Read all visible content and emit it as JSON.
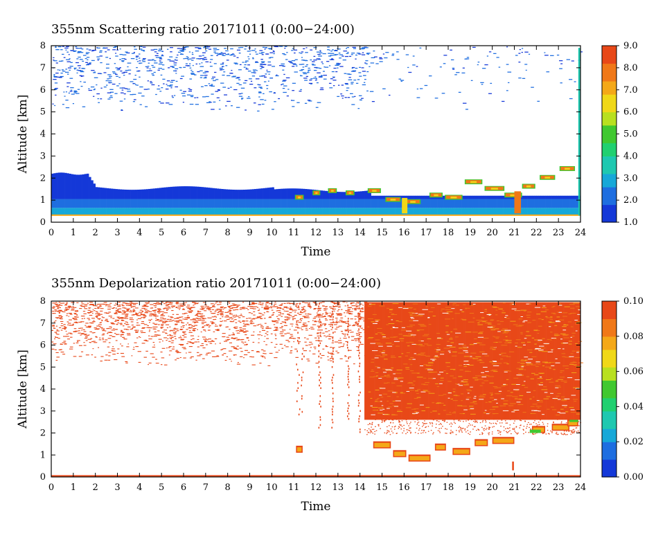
{
  "chart_data": [
    {
      "type": "heatmap",
      "title": "355nm Scattering ratio  20171011 (0:00−24:00)",
      "xlabel": "Time",
      "ylabel": "Altitude [km]",
      "xlim": [
        0,
        24
      ],
      "ylim": [
        0,
        8
      ],
      "x_ticks": [
        "0",
        "1",
        "2",
        "3",
        "4",
        "5",
        "6",
        "7",
        "8",
        "9",
        "10",
        "11",
        "12",
        "13",
        "14",
        "15",
        "16",
        "17",
        "18",
        "19",
        "20",
        "21",
        "22",
        "23",
        "24"
      ],
      "y_ticks": [
        "0",
        "1",
        "2",
        "3",
        "4",
        "5",
        "6",
        "7",
        "8"
      ],
      "colorbar": {
        "min": 1.0,
        "max": 9.0,
        "tick_labels": [
          "1.0",
          "2.0",
          "3.0",
          "4.0",
          "5.0",
          "6.0",
          "7.0",
          "8.0",
          "9.0"
        ]
      },
      "features": [
        {
          "name": "boundary layer",
          "time_range": [
            0,
            14.5
          ],
          "altitude_top_km": [
            2.2,
            1.5
          ],
          "value": 1.8
        },
        {
          "name": "low cloud tops",
          "time_range": [
            11,
            24
          ],
          "altitude_km": [
            0.8,
            2.5
          ],
          "value": 8.5
        },
        {
          "name": "sparse upper aerosol",
          "time_range": [
            0,
            24
          ],
          "altitude_km": [
            5.0,
            8.0
          ],
          "value": 1.3
        }
      ]
    },
    {
      "type": "heatmap",
      "title": "355nm Depolarization ratio  20171011 (0:00−24:00)",
      "xlabel": "Time",
      "ylabel": "Altitude [km]",
      "xlim": [
        0,
        24
      ],
      "ylim": [
        0,
        8
      ],
      "x_ticks": [
        "0",
        "1",
        "2",
        "3",
        "4",
        "5",
        "6",
        "7",
        "8",
        "9",
        "10",
        "11",
        "12",
        "13",
        "14",
        "15",
        "16",
        "17",
        "18",
        "19",
        "20",
        "21",
        "22",
        "23",
        "24"
      ],
      "y_ticks": [
        "0",
        "1",
        "2",
        "3",
        "4",
        "5",
        "6",
        "7",
        "8"
      ],
      "colorbar": {
        "min": 0.0,
        "max": 0.1,
        "tick_labels": [
          "0.00",
          "0.02",
          "0.04",
          "0.06",
          "0.08",
          "0.10"
        ]
      },
      "features": [
        {
          "name": "upper noise",
          "time_range": [
            0,
            14
          ],
          "altitude_km": [
            5.0,
            8.0
          ],
          "value": 0.09
        },
        {
          "name": "dense high depolarization",
          "time_range": [
            14.2,
            24
          ],
          "altitude_km": [
            2.5,
            8.0
          ],
          "value": 0.09
        },
        {
          "name": "low cloud layer",
          "time_range": [
            14.5,
            24
          ],
          "altitude_km": [
            0.8,
            2.6
          ],
          "value": 0.07
        }
      ]
    }
  ],
  "colormap": [
    "#1438d8",
    "#1e6ee0",
    "#16a8d8",
    "#1ec8b0",
    "#20d070",
    "#40c830",
    "#b8e020",
    "#f0d818",
    "#f4a818",
    "#f07818",
    "#e84818"
  ]
}
